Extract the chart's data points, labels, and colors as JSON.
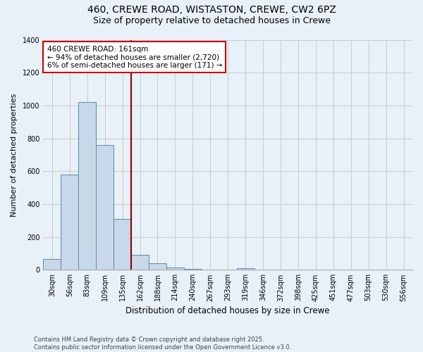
{
  "title_line1": "460, CREWE ROAD, WISTASTON, CREWE, CW2 6PZ",
  "title_line2": "Size of property relative to detached houses in Crewe",
  "xlabel": "Distribution of detached houses by size in Crewe",
  "ylabel": "Number of detached properties",
  "categories": [
    "30sqm",
    "56sqm",
    "83sqm",
    "109sqm",
    "135sqm",
    "162sqm",
    "188sqm",
    "214sqm",
    "240sqm",
    "267sqm",
    "293sqm",
    "319sqm",
    "346sqm",
    "372sqm",
    "398sqm",
    "425sqm",
    "451sqm",
    "477sqm",
    "503sqm",
    "530sqm",
    "556sqm"
  ],
  "values": [
    65,
    580,
    1020,
    760,
    310,
    90,
    40,
    15,
    5,
    0,
    0,
    10,
    0,
    0,
    0,
    0,
    0,
    0,
    0,
    0,
    0
  ],
  "bar_color": "#c8d8e8",
  "bar_edge_color": "#5a8ab0",
  "vline_x_index": 5,
  "vline_color": "#8B0000",
  "annotation_line1": "460 CREWE ROAD: 161sqm",
  "annotation_line2": "← 94% of detached houses are smaller (2,720)",
  "annotation_line3": "6% of semi-detached houses are larger (171) →",
  "annotation_box_color": "#ffffff",
  "annotation_box_edge_color": "#cc0000",
  "ylim": [
    0,
    1400
  ],
  "yticks": [
    0,
    200,
    400,
    600,
    800,
    1000,
    1200,
    1400
  ],
  "grid_color": "#cccccc",
  "background_color": "#e8f0f8",
  "plot_bg_color": "#e8f0f8",
  "footer_text": "Contains HM Land Registry data © Crown copyright and database right 2025.\nContains public sector information licensed under the Open Government Licence v3.0.",
  "title_fontsize": 10,
  "subtitle_fontsize": 9,
  "xlabel_fontsize": 8.5,
  "ylabel_fontsize": 8,
  "tick_fontsize": 7,
  "annotation_fontsize": 7.5,
  "footer_fontsize": 6
}
